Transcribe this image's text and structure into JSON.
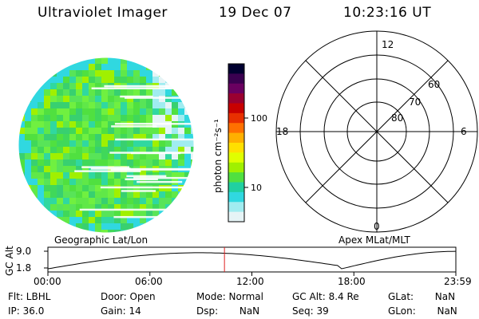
{
  "header": {
    "instrument": "Ultraviolet Imager",
    "date": "19 Dec 07",
    "time": "10:23:16 UT"
  },
  "colorbar": {
    "unit_label": "photon cm⁻²s⁻¹",
    "ticks": [
      "100",
      "10"
    ],
    "colors": [
      "#000030",
      "#3a0050",
      "#6a0060",
      "#9a0030",
      "#c80000",
      "#e83000",
      "#ff7000",
      "#ffb000",
      "#ffe000",
      "#e0ff00",
      "#a0f000",
      "#50e040",
      "#20d0a0",
      "#30d8e0",
      "#a0ecf0",
      "#e6f4f6"
    ]
  },
  "left_map": {
    "caption": "Geographic Lat/Lon"
  },
  "right_map": {
    "caption": "Apex MLat/MLT",
    "mlt_labels": {
      "top": "12",
      "bottom": "0",
      "left": "18",
      "right": "6"
    },
    "mlat_labels": [
      "60",
      "70",
      "80"
    ]
  },
  "timeline": {
    "ylabel": "GC Alt",
    "yticks": [
      "9.0",
      "1.8"
    ],
    "xticks": [
      "00:00",
      "06:00",
      "12:00",
      "18:00",
      "23:59"
    ],
    "current_time_fraction": 0.4328
  },
  "info": {
    "filter": "Flt: LBHL",
    "ip": "IP: 36.0",
    "door": "Door: Open",
    "gain": "Gain: 14",
    "mode": "Mode: Normal",
    "dsp": "Dsp:       NaN",
    "gcalt": "GC Alt: 8.4 Re",
    "seq": "Seq: 39",
    "glat": "GLat:       NaN",
    "glon": "GLon:       NaN"
  },
  "colors": {
    "cursor": "#e02020",
    "axis": "#000000"
  }
}
